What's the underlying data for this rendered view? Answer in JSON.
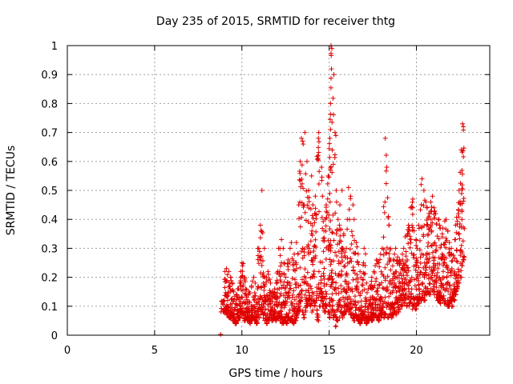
{
  "chart_data": {
    "type": "scatter",
    "title": "Day 235 of 2015, SRMTID for receiver thtg",
    "xlabel": "GPS time / hours",
    "ylabel": "SRMTID / TECUs",
    "xlim": [
      0,
      24.2
    ],
    "ylim": [
      0,
      1
    ],
    "xticks": [
      0,
      5,
      10,
      15,
      20
    ],
    "yticks": [
      0,
      0.1,
      0.2,
      0.3,
      0.4,
      0.5,
      0.6,
      0.7,
      0.8,
      0.9,
      1
    ],
    "xtick_labels": [
      "0",
      "5",
      "10",
      "15",
      "20"
    ],
    "ytick_labels": [
      "0",
      "0.1",
      "0.2",
      "0.3",
      "0.4",
      "0.5",
      "0.6",
      "0.7",
      "0.8",
      "0.9",
      "1"
    ],
    "grid": true,
    "marker": "+",
    "color": "#e00000",
    "series": [
      {
        "name": "SRMTID",
        "x": [
          8.78,
          8.8,
          9.0,
          9.1,
          9.2,
          9.3,
          9.4,
          9.5,
          9.6,
          9.7,
          9.8,
          9.9,
          10.0,
          10.1,
          10.2,
          10.3,
          10.4,
          10.5,
          10.6,
          10.7,
          10.8,
          10.9,
          11.0,
          11.1,
          11.2,
          11.3,
          11.4,
          11.5,
          11.6,
          11.7,
          11.8,
          11.9,
          12.0,
          12.1,
          12.2,
          12.3,
          12.4,
          12.5,
          12.6,
          12.7,
          12.8,
          12.9,
          13.0,
          13.1,
          13.2,
          13.3,
          13.4,
          13.5,
          13.6,
          13.7,
          13.8,
          13.9,
          14.0,
          14.1,
          14.2,
          14.3,
          14.4,
          14.5,
          14.6,
          14.7,
          14.8,
          14.9,
          15.0,
          15.05,
          15.1,
          15.15,
          15.2,
          15.3,
          15.4,
          15.5,
          15.6,
          15.7,
          15.8,
          15.9,
          16.0,
          16.1,
          16.2,
          16.3,
          16.4,
          16.5,
          16.6,
          16.7,
          16.8,
          16.9,
          17.0,
          17.1,
          17.2,
          17.3,
          17.4,
          17.5,
          17.6,
          17.7,
          17.8,
          17.9,
          18.0,
          18.1,
          18.2,
          18.3,
          18.4,
          18.5,
          18.6,
          18.7,
          18.8,
          18.9,
          19.0,
          19.1,
          19.2,
          19.3,
          19.4,
          19.5,
          19.6,
          19.7,
          19.8,
          19.9,
          20.0,
          20.1,
          20.2,
          20.3,
          20.4,
          20.5,
          20.6,
          20.7,
          20.8,
          20.9,
          21.0,
          21.1,
          21.2,
          21.3,
          21.4,
          21.5,
          21.6,
          21.7,
          21.8,
          21.9,
          22.0,
          22.1,
          22.2,
          22.3,
          22.4,
          22.5,
          22.6,
          22.65
        ],
        "y_low": [
          0.0,
          0.08,
          0.08,
          0.07,
          0.06,
          0.06,
          0.05,
          0.05,
          0.04,
          0.05,
          0.06,
          0.08,
          0.07,
          0.05,
          0.06,
          0.05,
          0.04,
          0.05,
          0.06,
          0.05,
          0.04,
          0.06,
          0.07,
          0.08,
          0.06,
          0.05,
          0.04,
          0.05,
          0.06,
          0.05,
          0.06,
          0.05,
          0.06,
          0.05,
          0.06,
          0.04,
          0.05,
          0.04,
          0.06,
          0.05,
          0.05,
          0.04,
          0.05,
          0.06,
          0.08,
          0.1,
          0.08,
          0.06,
          0.08,
          0.1,
          0.12,
          0.1,
          0.08,
          0.1,
          0.12,
          0.05,
          0.1,
          0.12,
          0.1,
          0.08,
          0.1,
          0.08,
          0.06,
          0.1,
          0.12,
          0.08,
          0.06,
          0.03,
          0.05,
          0.06,
          0.08,
          0.06,
          0.07,
          0.08,
          0.1,
          0.08,
          0.07,
          0.06,
          0.05,
          0.06,
          0.05,
          0.04,
          0.05,
          0.06,
          0.05,
          0.04,
          0.05,
          0.06,
          0.05,
          0.06,
          0.07,
          0.06,
          0.05,
          0.06,
          0.07,
          0.06,
          0.07,
          0.06,
          0.07,
          0.06,
          0.07,
          0.08,
          0.07,
          0.08,
          0.09,
          0.1,
          0.12,
          0.11,
          0.1,
          0.1,
          0.11,
          0.09,
          0.1,
          0.09,
          0.1,
          0.11,
          0.12,
          0.13,
          0.12,
          0.14,
          0.15,
          0.14,
          0.16,
          0.15,
          0.14,
          0.13,
          0.12,
          0.11,
          0.13,
          0.12,
          0.11,
          0.1,
          0.1,
          0.11,
          0.1,
          0.12,
          0.14,
          0.16,
          0.18,
          0.2,
          0.24,
          0.26
        ],
        "y_high": [
          0.0,
          0.12,
          0.22,
          0.23,
          0.22,
          0.2,
          0.18,
          0.15,
          0.14,
          0.16,
          0.18,
          0.22,
          0.25,
          0.2,
          0.16,
          0.14,
          0.15,
          0.17,
          0.2,
          0.18,
          0.16,
          0.3,
          0.38,
          0.5,
          0.3,
          0.2,
          0.22,
          0.21,
          0.18,
          0.15,
          0.16,
          0.18,
          0.22,
          0.3,
          0.33,
          0.3,
          0.25,
          0.2,
          0.26,
          0.3,
          0.32,
          0.28,
          0.25,
          0.32,
          0.45,
          0.6,
          0.68,
          0.66,
          0.7,
          0.6,
          0.5,
          0.55,
          0.45,
          0.42,
          0.48,
          0.68,
          0.7,
          0.58,
          0.48,
          0.4,
          0.45,
          0.55,
          0.68,
          0.8,
          1.0,
          0.99,
          0.9,
          0.7,
          0.5,
          0.4,
          0.45,
          0.5,
          0.35,
          0.3,
          0.4,
          0.51,
          0.48,
          0.45,
          0.4,
          0.32,
          0.28,
          0.22,
          0.2,
          0.25,
          0.3,
          0.18,
          0.16,
          0.17,
          0.2,
          0.22,
          0.24,
          0.26,
          0.25,
          0.28,
          0.3,
          0.46,
          0.68,
          0.58,
          0.38,
          0.3,
          0.26,
          0.28,
          0.3,
          0.27,
          0.26,
          0.28,
          0.3,
          0.34,
          0.35,
          0.38,
          0.44,
          0.47,
          0.36,
          0.33,
          0.3,
          0.38,
          0.52,
          0.54,
          0.5,
          0.46,
          0.44,
          0.42,
          0.46,
          0.48,
          0.44,
          0.42,
          0.4,
          0.38,
          0.35,
          0.37,
          0.4,
          0.36,
          0.32,
          0.3,
          0.28,
          0.33,
          0.38,
          0.42,
          0.5,
          0.64,
          0.73,
          0.72
        ]
      }
    ]
  }
}
